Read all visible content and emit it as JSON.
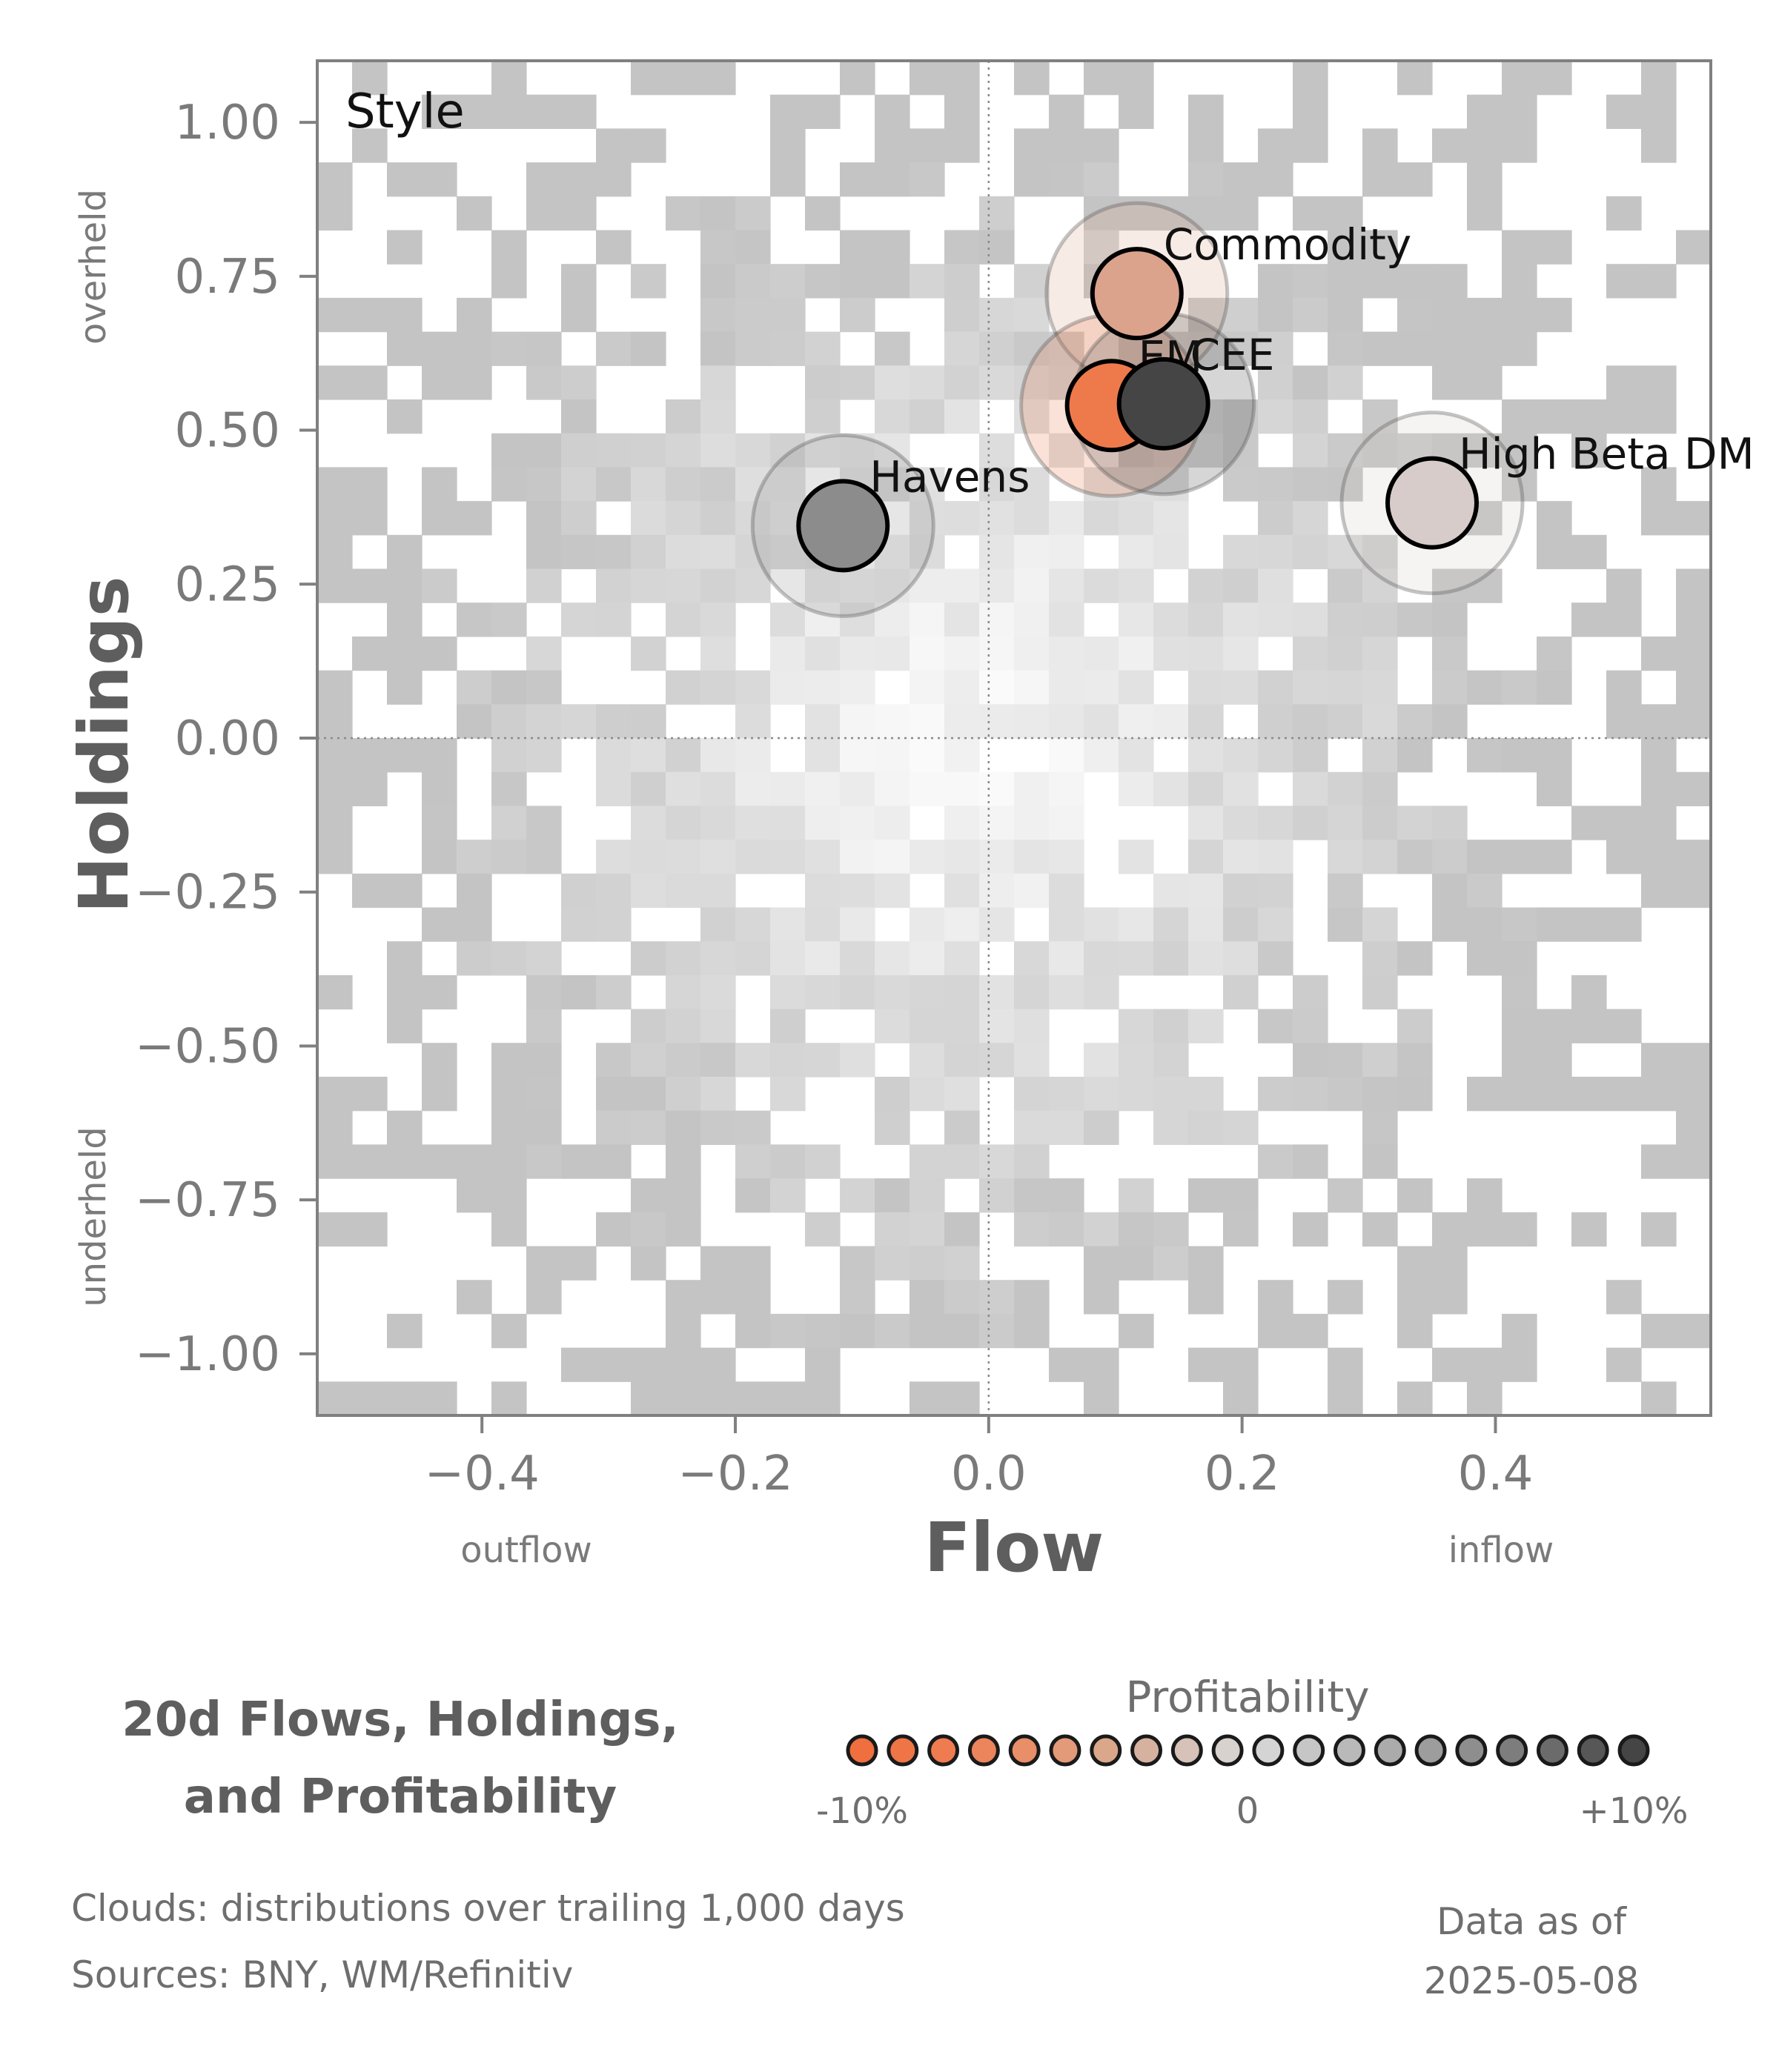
{
  "chart_data": {
    "type": "scatter",
    "panel_label": "Style",
    "xlabel": "Flow",
    "ylabel": "Holdings",
    "x_side_labels": {
      "left": "outflow",
      "right": "inflow"
    },
    "y_side_labels": {
      "top": "overheld",
      "bottom": "underheld"
    },
    "xlim": [
      -0.53,
      0.57
    ],
    "ylim": [
      -1.1,
      1.1
    ],
    "x_ticks": [
      -0.4,
      -0.2,
      0.0,
      0.2,
      0.4
    ],
    "x_tick_labels": [
      "−0.4",
      "−0.2",
      "0.0",
      "0.2",
      "0.4"
    ],
    "y_ticks": [
      1.0,
      0.75,
      0.5,
      0.25,
      0.0,
      -0.25,
      -0.5,
      -0.75,
      -1.0
    ],
    "y_tick_labels": [
      "1.00",
      "0.75",
      "0.50",
      "0.25",
      "0.00",
      "−0.25",
      "−0.50",
      "−0.75",
      "−1.00"
    ],
    "reference_lines": {
      "x": 0.0,
      "y": 0.0,
      "style": "dotted"
    },
    "background": "2D histogram cloud of trailing distributions (grey)",
    "points": [
      {
        "label": "Havens",
        "x": -0.115,
        "y": 0.345,
        "color": "#8c8c8c",
        "profitability": 3.5
      },
      {
        "label": "Commodity",
        "x": 0.117,
        "y": 0.722,
        "color": "#dba38c",
        "profitability": -5
      },
      {
        "label": "EM",
        "x": 0.097,
        "y": 0.54,
        "color": "#ee7a4c",
        "profitability": -10
      },
      {
        "label": "CEE",
        "x": 0.138,
        "y": 0.543,
        "color": "#454545",
        "profitability": 9
      },
      {
        "label": "High Beta DM",
        "x": 0.35,
        "y": 0.382,
        "color": "#d8ccca",
        "profitability": -1
      }
    ],
    "legend": {
      "title": "Profitability",
      "min_label": "-10%",
      "mid_label": "0",
      "max_label": "+10%",
      "colors": [
        "#ef6f3e",
        "#ef7547",
        "#ef7c50",
        "#ec855b",
        "#e88e68",
        "#e29a79",
        "#dba78b",
        "#d6b1a0",
        "#d6c2b8",
        "#d8d2ce",
        "#d4d4d4",
        "#c6c6c6",
        "#b9b9b9",
        "#ababab",
        "#9d9d9d",
        "#8e8e8e",
        "#7d7d7d",
        "#6b6b6b",
        "#575757",
        "#454545"
      ]
    },
    "footer": {
      "title_lines": [
        "20d Flows, Holdings,",
        "and Profitability"
      ],
      "notes": [
        "Clouds:  distributions over trailing 1,000 days",
        "Sources:  BNY, WM/Refinitiv"
      ],
      "as_of_lines": [
        "Data as of",
        "2025-05-08"
      ]
    }
  }
}
